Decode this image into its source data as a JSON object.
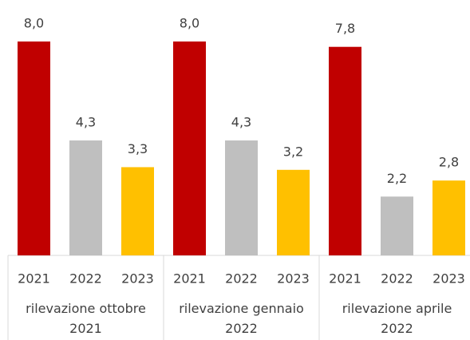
{
  "chart_data": {
    "type": "bar",
    "categories": [
      "rilevazione ottobre 2021",
      "rilevazione gennaio 2022",
      "rilevazione aprile 2022"
    ],
    "series": [
      {
        "name": "2021",
        "color": "#c00000",
        "values": [
          8.0,
          8.0,
          7.8
        ],
        "value_labels": [
          "8,0",
          "8,0",
          "7,8"
        ]
      },
      {
        "name": "2022",
        "color": "#bfbfbf",
        "values": [
          4.3,
          4.3,
          2.2
        ],
        "value_labels": [
          "4,3",
          "4,3",
          "2,2"
        ]
      },
      {
        "name": "2023",
        "color": "#ffc000",
        "values": [
          3.3,
          3.2,
          2.8
        ],
        "value_labels": [
          "3,3",
          "3,2",
          "2,8"
        ]
      }
    ]
  }
}
